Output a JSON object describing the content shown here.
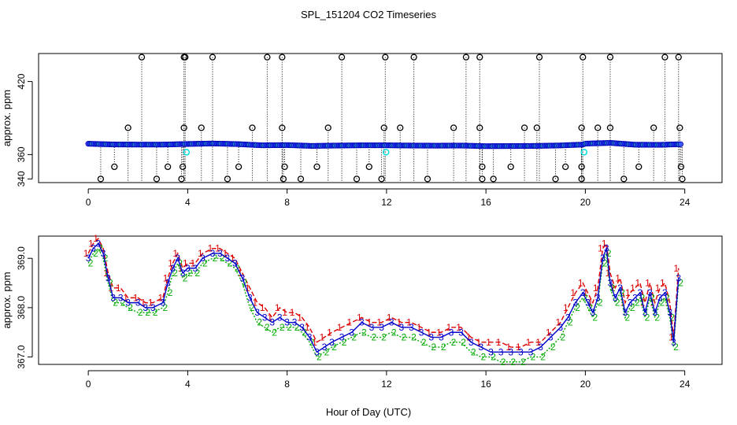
{
  "title": "SPL_151204  CO2 Timeseries",
  "xlabel": "Hour of Day (UTC)",
  "chart_data": [
    {
      "type": "scatter",
      "ylabel": "approx. ppm",
      "xlim": [
        0,
        24
      ],
      "ylim": [
        340,
        440
      ],
      "x_ticks": [
        0,
        4,
        8,
        12,
        16,
        20,
        24
      ],
      "x_tick_labels": [
        "0",
        "4",
        "8",
        "12",
        "16",
        "20",
        "24"
      ],
      "y_ticks": [
        340,
        360,
        420
      ],
      "y_tick_labels": [
        "340",
        "360",
        "420"
      ],
      "baseline": {
        "name": "CO2 mean",
        "x": [
          0.0,
          1.0,
          2.0,
          3.0,
          4.0,
          5.0,
          6.0,
          7.0,
          8.0,
          9.0,
          10.0,
          11.0,
          12.0,
          13.0,
          14.0,
          15.0,
          16.0,
          17.0,
          18.0,
          19.0,
          19.9,
          20.0,
          21.0,
          22.0,
          23.0,
          23.8
        ],
        "y": [
          368.9,
          368.3,
          368.2,
          368.2,
          368.7,
          369.1,
          368.6,
          367.6,
          367.8,
          367.1,
          367.4,
          367.6,
          367.6,
          367.4,
          367.3,
          367.4,
          366.9,
          367.0,
          367.1,
          367.5,
          368.2,
          369.0,
          369.6,
          368.1,
          368.0,
          368.5
        ]
      },
      "outliers_high": [
        2.15,
        3.85,
        3.9,
        5.0,
        7.2,
        7.8,
        10.2,
        11.95,
        13.1,
        15.2,
        15.75,
        18.15,
        19.9,
        21.0,
        23.2,
        23.75
      ],
      "outliers_mid": [
        1.6,
        3.85,
        4.55,
        6.6,
        7.8,
        9.65,
        11.9,
        12.55,
        14.7,
        15.75,
        17.55,
        18.05,
        19.85,
        20.5,
        21.0,
        22.75,
        23.8
      ],
      "outliers_low": [
        1.05,
        3.2,
        3.8,
        6.05,
        7.9,
        9.2,
        11.3,
        15.85,
        17.0,
        19.2,
        19.85,
        22.15,
        23.85
      ],
      "outliers_min": [
        0.5,
        2.75,
        3.75,
        5.6,
        7.85,
        8.55,
        10.8,
        11.8,
        13.65,
        15.85,
        16.3,
        18.8,
        19.85,
        21.55,
        23.9
      ],
      "cyan_points": [
        {
          "x": 3.95,
          "y": 362
        },
        {
          "x": 11.98,
          "y": 362
        },
        {
          "x": 19.95,
          "y": 362
        }
      ]
    },
    {
      "type": "line",
      "ylabel": "approx. ppm",
      "xlim": [
        0,
        24
      ],
      "ylim": [
        366.9,
        369.4
      ],
      "x_ticks": [
        0,
        4,
        8,
        12,
        16,
        20,
        24
      ],
      "x_tick_labels": [
        "0",
        "4",
        "8",
        "12",
        "16",
        "20",
        "24"
      ],
      "y_ticks": [
        367.0,
        368.0,
        369.0
      ],
      "y_tick_labels": [
        "367.0",
        "368.0",
        "369.0"
      ],
      "x": [
        0.0,
        0.2,
        0.4,
        0.6,
        0.8,
        1.0,
        1.3,
        1.6,
        2.0,
        2.3,
        2.6,
        3.0,
        3.2,
        3.4,
        3.6,
        3.8,
        4.0,
        4.3,
        4.6,
        5.0,
        5.3,
        5.6,
        5.9,
        6.2,
        6.5,
        6.8,
        7.1,
        7.4,
        7.7,
        8.0,
        8.3,
        8.6,
        8.9,
        9.2,
        9.5,
        9.8,
        10.2,
        10.6,
        11.0,
        11.4,
        11.8,
        12.2,
        12.6,
        13.0,
        13.4,
        13.8,
        14.2,
        14.6,
        15.0,
        15.4,
        15.8,
        16.2,
        16.6,
        17.0,
        17.4,
        17.8,
        18.2,
        18.6,
        19.0,
        19.3,
        19.6,
        19.9,
        20.1,
        20.3,
        20.5,
        20.7,
        20.85,
        21.0,
        21.2,
        21.4,
        21.6,
        21.8,
        22.0,
        22.2,
        22.4,
        22.6,
        22.8,
        23.0,
        23.2,
        23.4,
        23.55,
        23.75
      ],
      "series": [
        {
          "name": "1",
          "color": "#dd0000",
          "values": [
            369.1,
            369.3,
            369.4,
            369.2,
            368.7,
            368.4,
            368.4,
            368.2,
            368.2,
            368.1,
            368.1,
            368.2,
            368.6,
            368.9,
            369.1,
            368.8,
            368.9,
            368.9,
            369.1,
            369.2,
            369.2,
            369.1,
            369.0,
            368.7,
            368.4,
            368.1,
            368.0,
            367.8,
            368.0,
            367.9,
            367.9,
            367.8,
            367.6,
            367.3,
            367.4,
            367.5,
            367.6,
            367.7,
            367.8,
            367.7,
            367.7,
            367.8,
            367.7,
            367.7,
            367.6,
            367.5,
            367.5,
            367.6,
            367.6,
            367.4,
            367.3,
            367.3,
            367.3,
            367.2,
            367.2,
            367.3,
            367.3,
            367.5,
            367.7,
            368.0,
            368.3,
            368.5,
            368.3,
            368.1,
            368.4,
            369.2,
            369.3,
            368.7,
            368.4,
            368.6,
            368.1,
            368.3,
            368.4,
            368.5,
            368.1,
            368.5,
            368.1,
            368.4,
            368.5,
            368.1,
            367.4,
            368.8
          ]
        },
        {
          "name": "2",
          "color": "#00aa00",
          "values": [
            368.9,
            369.1,
            369.2,
            369.0,
            368.5,
            368.1,
            368.1,
            368.0,
            367.9,
            367.9,
            367.9,
            368.0,
            368.3,
            368.7,
            368.9,
            368.6,
            368.7,
            368.7,
            368.9,
            369.0,
            369.0,
            368.9,
            368.8,
            368.5,
            368.0,
            367.7,
            367.6,
            367.5,
            367.6,
            367.6,
            367.6,
            367.5,
            367.3,
            367.0,
            367.1,
            367.2,
            367.3,
            367.4,
            367.5,
            367.4,
            367.4,
            367.5,
            367.4,
            367.4,
            367.3,
            367.2,
            367.2,
            367.3,
            367.3,
            367.1,
            367.0,
            367.0,
            366.9,
            366.9,
            366.9,
            367.0,
            367.0,
            367.2,
            367.4,
            367.7,
            368.0,
            368.2,
            368.0,
            367.8,
            368.1,
            368.9,
            369.1,
            368.4,
            368.1,
            368.3,
            367.8,
            368.0,
            368.1,
            368.2,
            367.8,
            368.2,
            367.8,
            368.1,
            368.2,
            367.8,
            367.2,
            368.5
          ]
        },
        {
          "name": "3",
          "color": "#0000cc",
          "values": [
            369.0,
            369.2,
            369.3,
            369.1,
            368.6,
            368.2,
            368.2,
            368.1,
            368.1,
            368.0,
            368.0,
            368.1,
            368.5,
            368.8,
            369.0,
            368.7,
            368.8,
            368.8,
            369.0,
            369.1,
            369.1,
            369.0,
            368.9,
            368.6,
            368.2,
            367.9,
            367.8,
            367.7,
            367.8,
            367.7,
            367.7,
            367.6,
            367.4,
            367.1,
            367.2,
            367.3,
            367.4,
            367.5,
            367.7,
            367.6,
            367.6,
            367.7,
            367.6,
            367.6,
            367.5,
            367.4,
            367.4,
            367.5,
            367.5,
            367.3,
            367.2,
            367.1,
            367.1,
            367.1,
            367.1,
            367.1,
            367.2,
            367.4,
            367.6,
            367.8,
            368.1,
            368.3,
            368.1,
            367.9,
            368.2,
            369.0,
            369.2,
            368.5,
            368.2,
            368.4,
            367.9,
            368.1,
            368.2,
            368.3,
            367.9,
            368.3,
            367.9,
            368.2,
            368.3,
            367.9,
            367.3,
            368.6
          ]
        }
      ]
    }
  ]
}
